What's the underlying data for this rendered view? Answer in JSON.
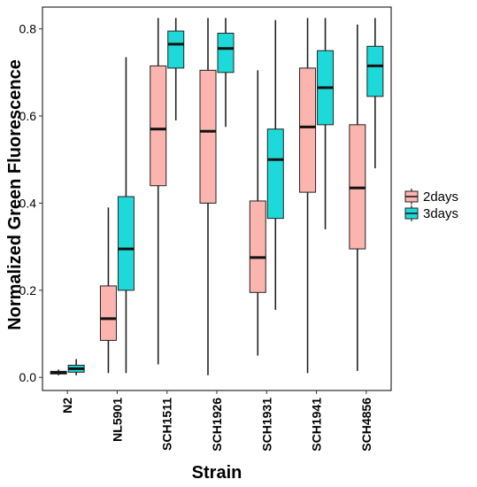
{
  "chart_data": {
    "type": "boxplot",
    "xlabel": "Strain",
    "ylabel": "Normalized Green Fluorescence",
    "ylim": [
      -0.03,
      0.85
    ],
    "yticks": [
      "0.0",
      "0.2",
      "0.4",
      "0.6",
      "0.8"
    ],
    "categories": [
      "N2",
      "NL5901",
      "SCH1511",
      "SCH1926",
      "SCH1931",
      "SCH1941",
      "SCH4856"
    ],
    "legend_position": "right",
    "grid": false,
    "series": [
      {
        "name": "2days",
        "color": "#FBB4AE",
        "boxes": [
          {
            "min": 0.005,
            "q1": 0.008,
            "median": 0.011,
            "q3": 0.014,
            "max": 0.018
          },
          {
            "min": 0.01,
            "q1": 0.085,
            "median": 0.135,
            "q3": 0.21,
            "max": 0.39
          },
          {
            "min": 0.03,
            "q1": 0.44,
            "median": 0.57,
            "q3": 0.715,
            "max": 0.825
          },
          {
            "min": 0.005,
            "q1": 0.4,
            "median": 0.565,
            "q3": 0.705,
            "max": 0.825
          },
          {
            "min": 0.05,
            "q1": 0.195,
            "median": 0.275,
            "q3": 0.405,
            "max": 0.705
          },
          {
            "min": 0.01,
            "q1": 0.425,
            "median": 0.575,
            "q3": 0.71,
            "max": 0.825
          },
          {
            "min": 0.015,
            "q1": 0.295,
            "median": 0.435,
            "q3": 0.58,
            "max": 0.81
          }
        ]
      },
      {
        "name": "3days",
        "color": "#1ED9D9",
        "boxes": [
          {
            "min": 0.005,
            "q1": 0.012,
            "median": 0.02,
            "q3": 0.028,
            "max": 0.042
          },
          {
            "min": 0.01,
            "q1": 0.2,
            "median": 0.295,
            "q3": 0.415,
            "max": 0.735
          },
          {
            "min": 0.59,
            "q1": 0.71,
            "median": 0.765,
            "q3": 0.795,
            "max": 0.825
          },
          {
            "min": 0.575,
            "q1": 0.7,
            "median": 0.755,
            "q3": 0.79,
            "max": 0.825
          },
          {
            "min": 0.155,
            "q1": 0.365,
            "median": 0.5,
            "q3": 0.57,
            "max": 0.82
          },
          {
            "min": 0.34,
            "q1": 0.58,
            "median": 0.665,
            "q3": 0.75,
            "max": 0.825
          },
          {
            "min": 0.48,
            "q1": 0.645,
            "median": 0.715,
            "q3": 0.76,
            "max": 0.825
          }
        ]
      }
    ]
  }
}
